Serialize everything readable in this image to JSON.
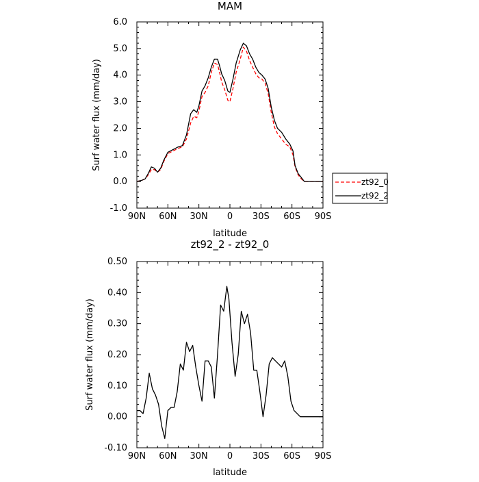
{
  "chart_data": [
    {
      "type": "line",
      "title": "MAM",
      "xlabel": "latitude",
      "ylabel": "Surf water flux (mm/day)",
      "x_ticks": [
        "90N",
        "60N",
        "30N",
        "0",
        "30S",
        "60S",
        "90S"
      ],
      "xlim": [
        90,
        -90
      ],
      "ylim": [
        -1.0,
        6.0
      ],
      "y_ticks": [
        "-1.0",
        "0.0",
        "1.0",
        "2.0",
        "3.0",
        "4.0",
        "5.0",
        "6.0"
      ],
      "legend_position": "right",
      "series": [
        {
          "name": "zt92_0",
          "color": "#ff0000",
          "style": "dashed",
          "x": [
            90,
            85,
            82,
            79,
            76,
            73,
            70,
            67,
            64,
            60,
            55,
            50,
            46,
            42,
            38,
            35,
            32,
            30,
            27,
            24,
            21,
            18,
            15,
            12,
            10,
            8,
            5,
            2,
            0,
            -3,
            -6,
            -10,
            -13,
            -16,
            -19,
            -22,
            -25,
            -28,
            -31,
            -34,
            -37,
            -40,
            -43,
            -46,
            -50,
            -54,
            -58,
            -61,
            -63,
            -66,
            -69,
            -72,
            -75,
            -78,
            -81,
            -85,
            -90
          ],
          "y": [
            0.0,
            0.05,
            0.1,
            0.25,
            0.45,
            0.45,
            0.35,
            0.45,
            0.75,
            1.05,
            1.15,
            1.25,
            1.3,
            1.6,
            2.2,
            2.45,
            2.4,
            2.65,
            3.2,
            3.35,
            3.6,
            4.1,
            4.45,
            4.4,
            4.1,
            3.75,
            3.45,
            3.05,
            3.0,
            3.5,
            4.1,
            4.6,
            5.05,
            4.9,
            4.55,
            4.3,
            4.05,
            3.9,
            3.85,
            3.7,
            3.3,
            2.6,
            2.05,
            1.8,
            1.6,
            1.4,
            1.3,
            1.0,
            0.55,
            0.25,
            0.1,
            0.0,
            0.0,
            0.0,
            0.0,
            0.0,
            0.0
          ]
        },
        {
          "name": "zt92_2",
          "color": "#000000",
          "style": "solid",
          "x": [
            90,
            85,
            82,
            79,
            76,
            73,
            70,
            67,
            64,
            60,
            55,
            50,
            46,
            42,
            38,
            35,
            32,
            30,
            27,
            24,
            21,
            18,
            15,
            12,
            10,
            8,
            5,
            2,
            0,
            -3,
            -6,
            -10,
            -13,
            -16,
            -19,
            -22,
            -25,
            -28,
            -31,
            -34,
            -37,
            -40,
            -43,
            -46,
            -50,
            -54,
            -58,
            -61,
            -63,
            -66,
            -69,
            -72,
            -75,
            -78,
            -81,
            -85,
            -90
          ],
          "y": [
            0.0,
            0.05,
            0.1,
            0.3,
            0.55,
            0.5,
            0.35,
            0.5,
            0.8,
            1.1,
            1.2,
            1.3,
            1.35,
            1.75,
            2.55,
            2.7,
            2.6,
            2.85,
            3.4,
            3.6,
            3.9,
            4.3,
            4.6,
            4.6,
            4.35,
            4.05,
            3.8,
            3.4,
            3.35,
            3.85,
            4.45,
            4.95,
            5.2,
            5.1,
            4.8,
            4.6,
            4.3,
            4.1,
            4.0,
            3.85,
            3.5,
            2.8,
            2.3,
            2.0,
            1.85,
            1.6,
            1.4,
            1.15,
            0.6,
            0.3,
            0.15,
            0.0,
            0.0,
            0.0,
            0.0,
            0.0,
            0.0
          ]
        }
      ]
    },
    {
      "type": "line",
      "title": "zt92_2 - zt92_0",
      "xlabel": "latitude",
      "ylabel": "Surf water flux (mm/day)",
      "x_ticks": [
        "90N",
        "60N",
        "30N",
        "0",
        "30S",
        "60S",
        "90S"
      ],
      "xlim": [
        90,
        -90
      ],
      "ylim": [
        -0.1,
        0.5
      ],
      "y_ticks": [
        "-0.10",
        "0.00",
        "0.10",
        "0.20",
        "0.30",
        "0.40",
        "0.50"
      ],
      "series": [
        {
          "name": "zt92_2 - zt92_0",
          "color": "#000000",
          "style": "solid",
          "x": [
            90,
            87,
            84,
            81,
            78,
            75,
            72,
            69,
            66,
            63,
            60,
            57,
            54,
            51,
            48,
            45,
            42,
            39,
            36,
            33,
            30,
            27,
            24,
            21,
            18,
            15,
            12,
            9,
            6,
            3,
            1,
            -2,
            -5,
            -8,
            -11,
            -14,
            -17,
            -20,
            -23,
            -26,
            -29,
            -32,
            -35,
            -38,
            -41,
            -44,
            -47,
            -50,
            -53,
            -56,
            -59,
            -62,
            -65,
            -68,
            -71,
            -74,
            -77,
            -80,
            -83,
            -86,
            -90
          ],
          "y": [
            0.02,
            0.02,
            0.01,
            0.06,
            0.14,
            0.09,
            0.07,
            0.04,
            -0.03,
            -0.07,
            0.02,
            0.03,
            0.03,
            0.08,
            0.17,
            0.15,
            0.24,
            0.21,
            0.23,
            0.16,
            0.1,
            0.05,
            0.18,
            0.18,
            0.16,
            0.06,
            0.2,
            0.36,
            0.34,
            0.42,
            0.38,
            0.24,
            0.13,
            0.2,
            0.34,
            0.3,
            0.33,
            0.27,
            0.15,
            0.15,
            0.08,
            0.0,
            0.07,
            0.17,
            0.19,
            0.18,
            0.17,
            0.16,
            0.18,
            0.13,
            0.05,
            0.02,
            0.01,
            0.0,
            0.0,
            0.0,
            0.0,
            0.0,
            0.0,
            0.0,
            0.0
          ]
        }
      ]
    }
  ]
}
